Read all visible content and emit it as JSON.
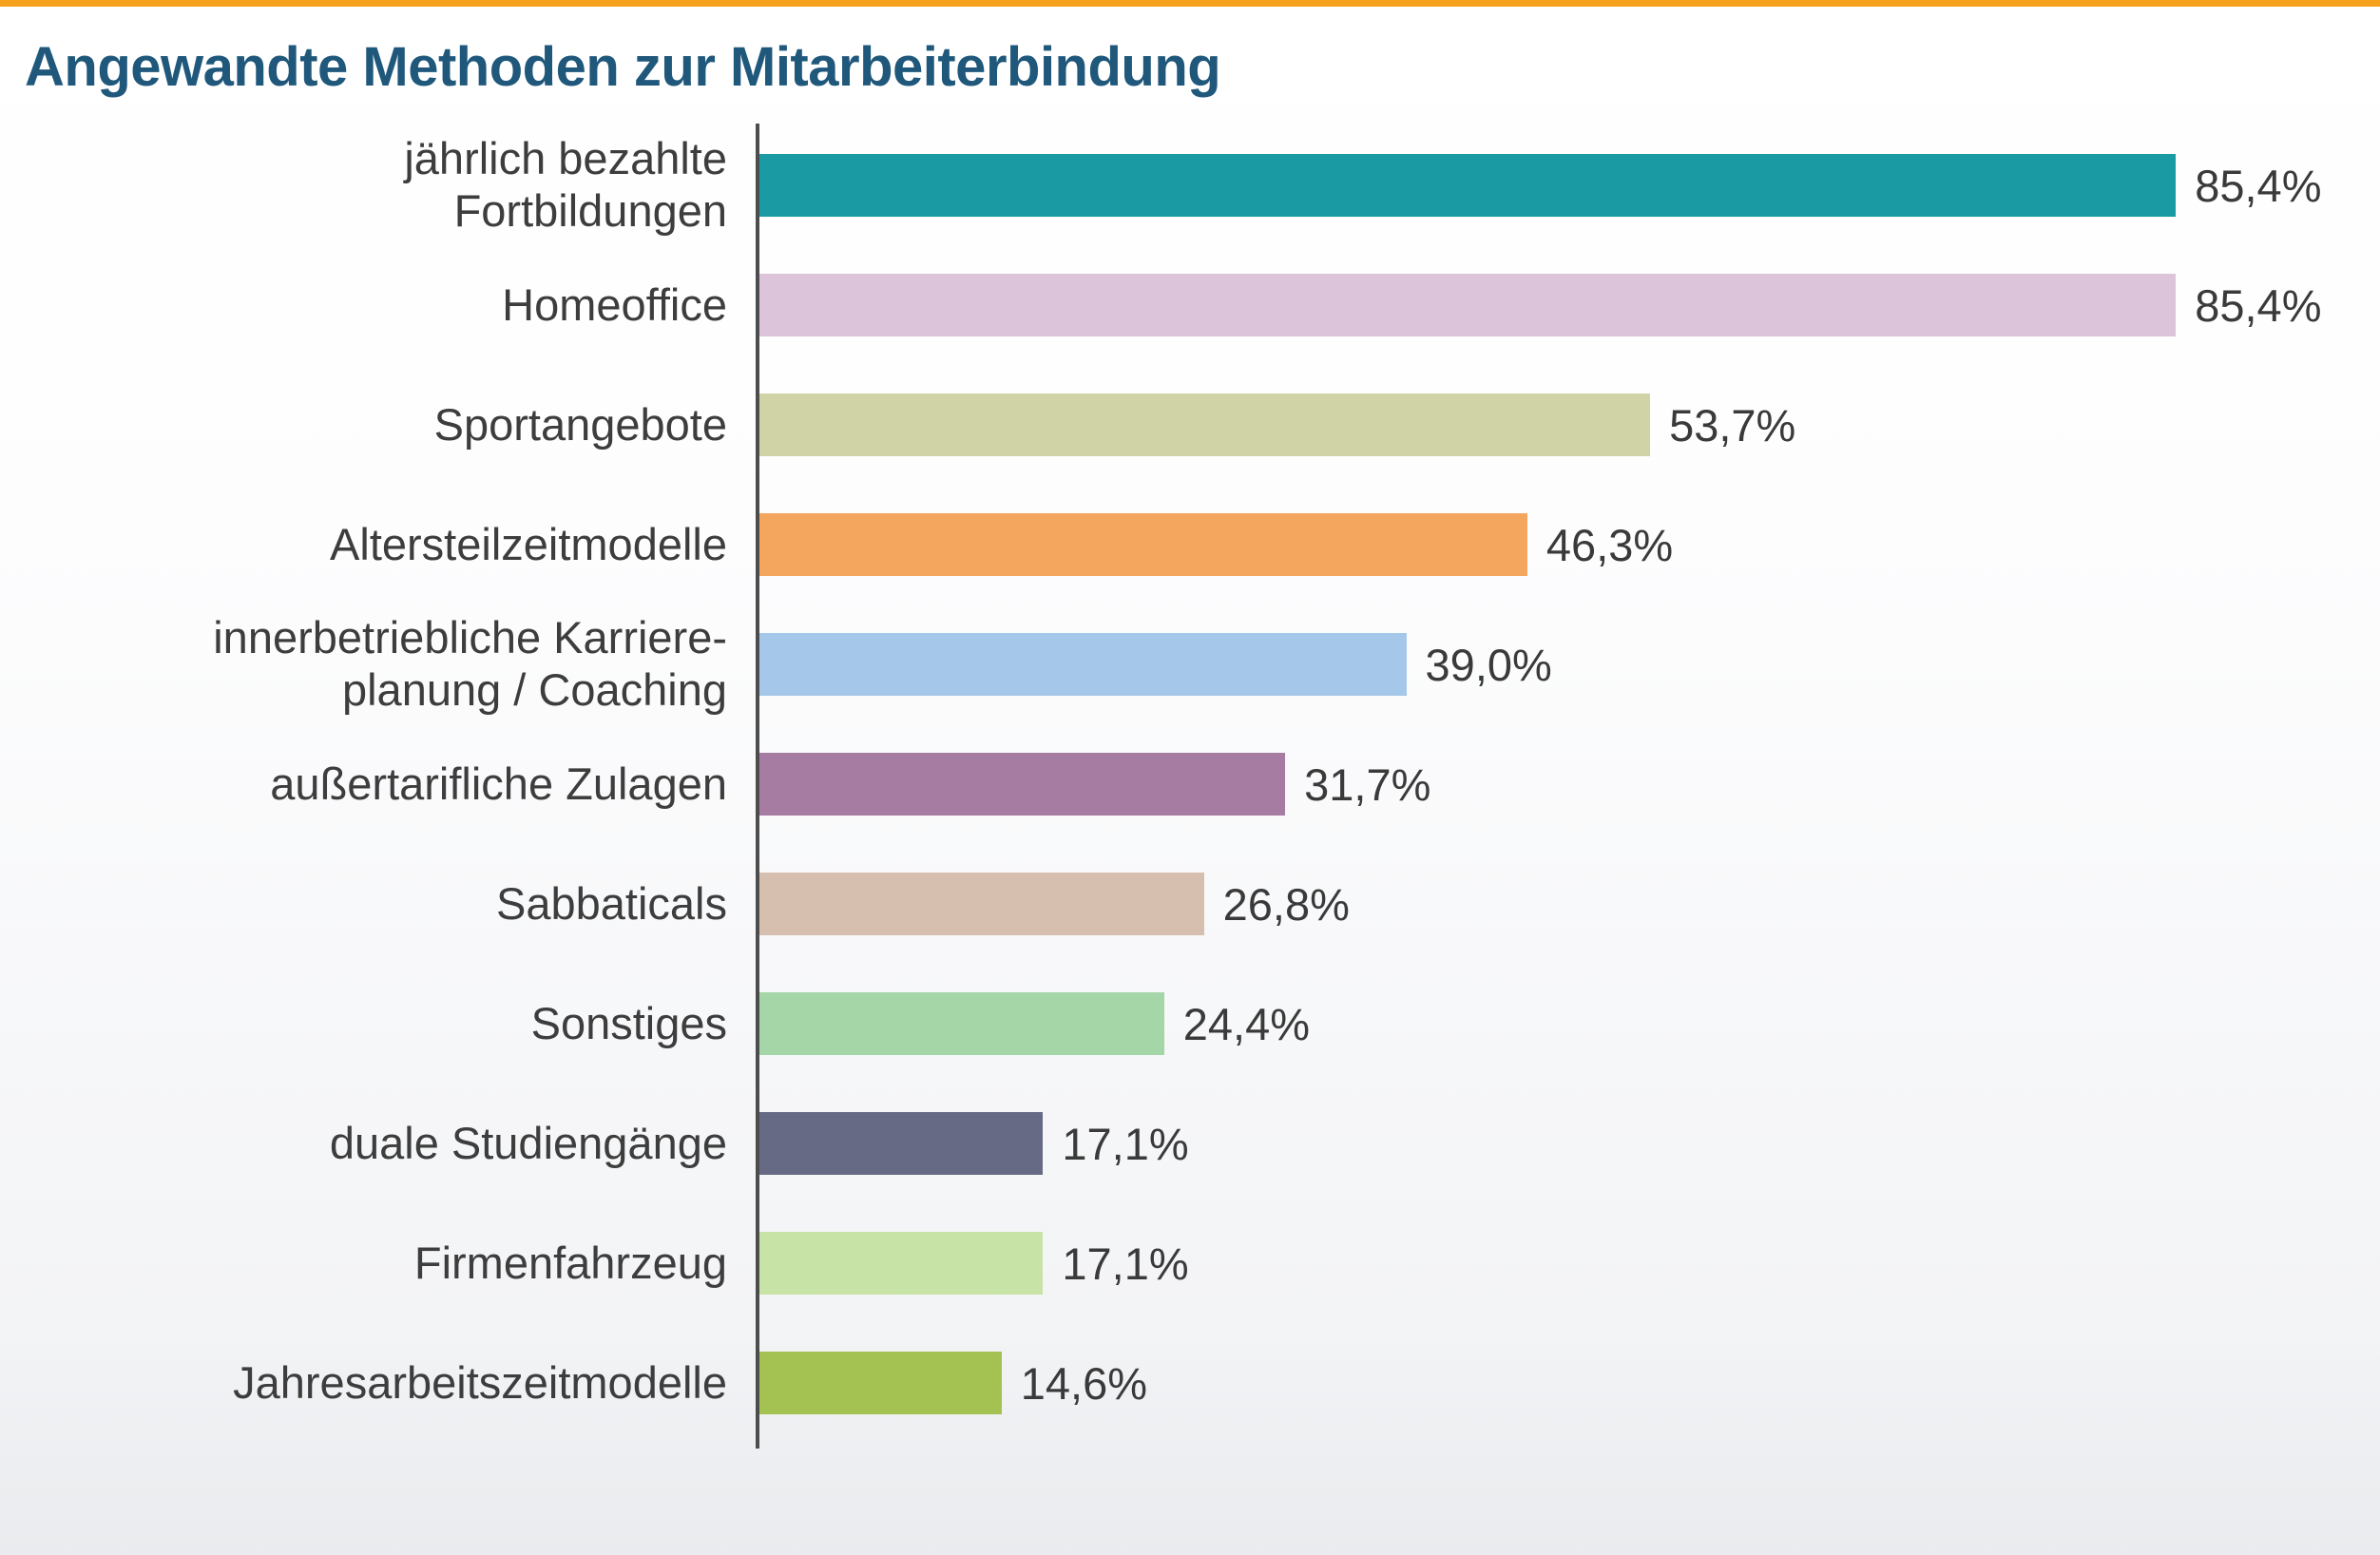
{
  "page": {
    "accent_color": "#f6a21d",
    "title_color": "#20587c",
    "axis_color": "#4d4d4d"
  },
  "chart_data": {
    "type": "bar",
    "orientation": "horizontal",
    "title": "Angewandte Methoden zur Mitarbeiterbindung",
    "xlim": [
      0,
      100
    ],
    "value_suffix": "%",
    "grid": false,
    "legend": false,
    "categories": [
      "jährlich bezahlte Fortbildungen",
      "Homeoffice",
      "Sportangebote",
      "Altersteilzeitmodelle",
      "innerbetriebliche Karriereplanung / Coaching",
      "außertarifliche Zulagen",
      "Sabbaticals",
      "Sonstiges",
      "duale Studiengänge",
      "Firmenfahrzeug",
      "Jahresarbeitszeitmodelle"
    ],
    "category_lines": [
      [
        "jährlich bezahlte",
        "Fortbildungen"
      ],
      [
        "Homeoffice"
      ],
      [
        "Sportangebote"
      ],
      [
        "Altersteilzeitmodelle"
      ],
      [
        "innerbetriebliche Karriere-",
        "planung / Coaching"
      ],
      [
        "außertarifliche Zulagen"
      ],
      [
        "Sabbaticals"
      ],
      [
        "Sonstiges"
      ],
      [
        "duale Studiengänge"
      ],
      [
        "Firmenfahrzeug"
      ],
      [
        "Jahresarbeitszeitmodelle"
      ]
    ],
    "values": [
      85.4,
      85.4,
      53.7,
      46.3,
      39.0,
      31.7,
      26.8,
      24.4,
      17.1,
      17.1,
      14.6
    ],
    "value_labels": [
      "85,4%",
      "85,4%",
      "53,7%",
      "46,3%",
      "39,0%",
      "31,7%",
      "26,8%",
      "24,4%",
      "17,1%",
      "17,1%",
      "14,6%"
    ],
    "bar_colors": [
      "#1a9aa2",
      "#dcc4db",
      "#d0d3a6",
      "#f4a55e",
      "#a5c7e9",
      "#a77ca3",
      "#d6bfae",
      "#a5d6a7",
      "#666a85",
      "#c8e3a6",
      "#a3c251"
    ]
  }
}
